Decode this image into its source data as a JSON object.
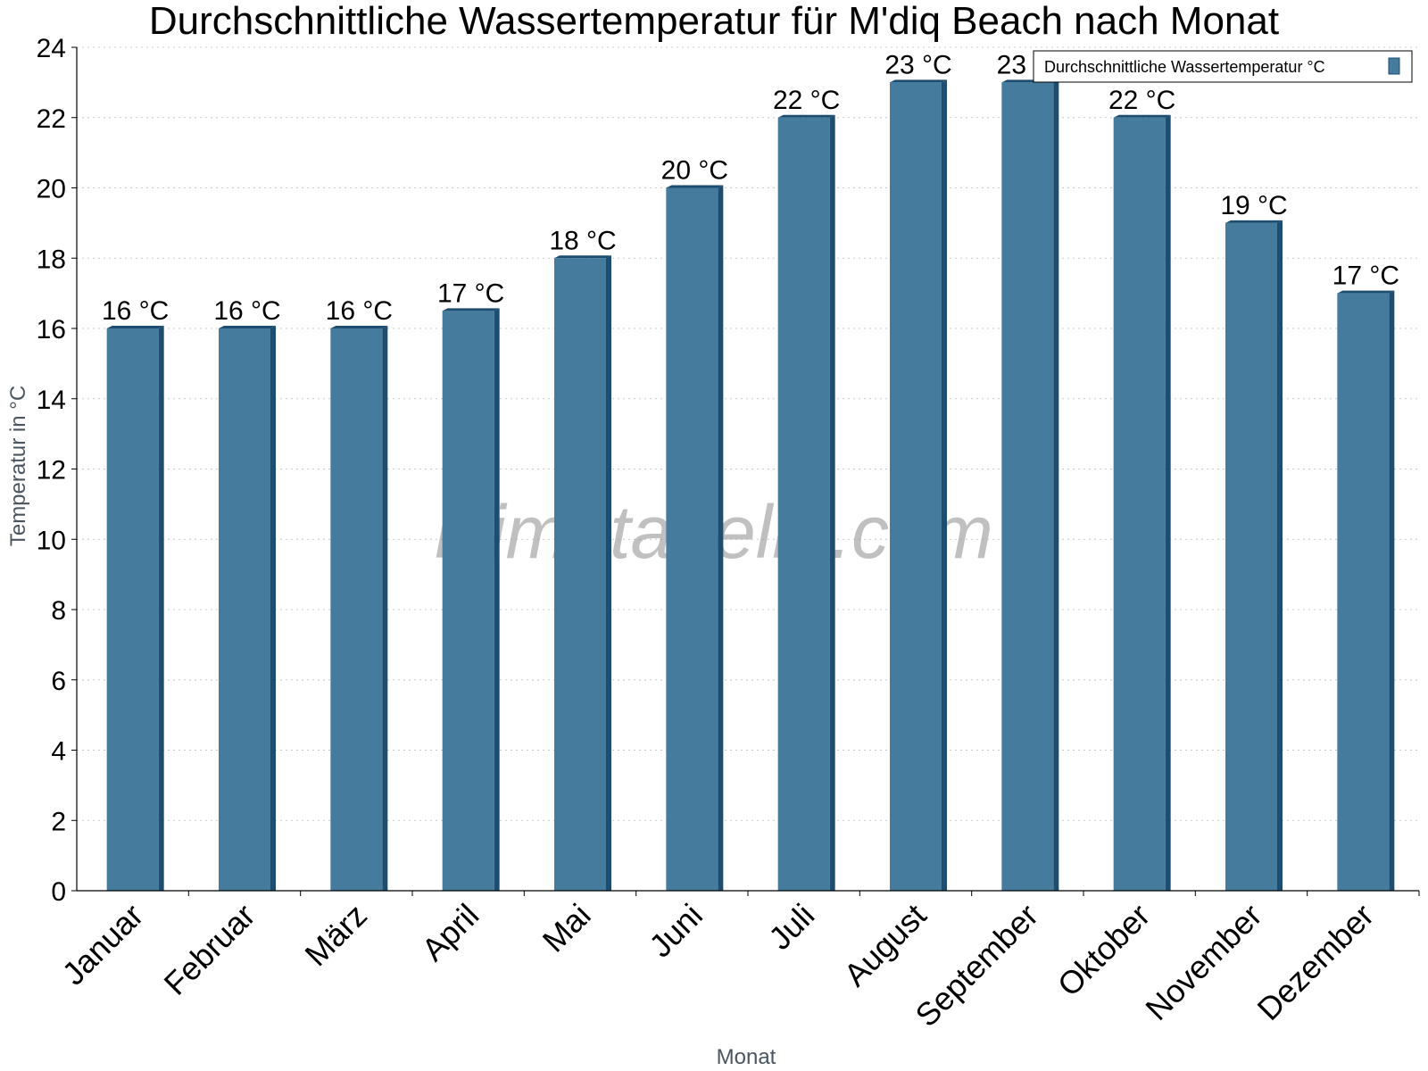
{
  "chart_data": {
    "type": "bar",
    "title": "Durchschnittliche Wassertemperatur für M'diq Beach nach Monat",
    "xlabel": "Monat",
    "ylabel": "Temperatur in °C",
    "ylim": [
      0,
      24
    ],
    "yticks": [
      "0",
      "2",
      "4",
      "6",
      "8",
      "10",
      "12",
      "14",
      "16",
      "18",
      "20",
      "22",
      "24"
    ],
    "grid": true,
    "legend_position": "top-right",
    "categories": [
      "Januar",
      "Februar",
      "März",
      "April",
      "Mai",
      "Juni",
      "Juli",
      "August",
      "September",
      "Oktober",
      "November",
      "Dezember"
    ],
    "series": [
      {
        "name": "Durchschnittliche Wassertemperatur °C",
        "values": [
          16,
          16,
          16,
          16.5,
          18,
          20,
          22,
          23,
          23,
          22,
          19,
          17
        ],
        "labels": [
          "16 °C",
          "16 °C",
          "16 °C",
          "17 °C",
          "18 °C",
          "20 °C",
          "22 °C",
          "23 °C",
          "23 °C",
          "22 °C",
          "19 °C",
          "17 °C"
        ]
      }
    ],
    "colors": {
      "bar": "#457b9d",
      "bar_side": "#1d4e6f"
    }
  },
  "watermark": "klimatabelle.com"
}
